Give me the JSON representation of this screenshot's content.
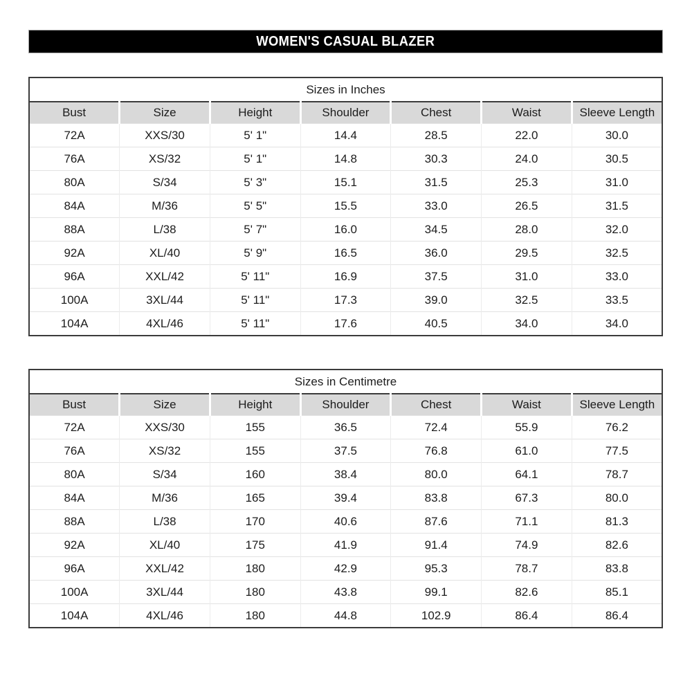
{
  "banner": {
    "title": "WOMEN'S CASUAL BLAZER",
    "bg_color": "#000000",
    "text_color": "#ffffff"
  },
  "colors": {
    "header_fill": "#d9d9d9",
    "table_border": "#3b3b3b",
    "row_separator": "#e2e2e2",
    "column_separator": "#ececec"
  },
  "tables": [
    {
      "title": "Sizes in Inches",
      "columns": [
        "Bust",
        "Size",
        "Height",
        "Shoulder",
        "Chest",
        "Waist",
        "Sleeve Length"
      ],
      "rows": [
        [
          "72A",
          "XXS/30",
          "5' 1\"",
          "14.4",
          "28.5",
          "22.0",
          "30.0"
        ],
        [
          "76A",
          "XS/32",
          "5' 1\"",
          "14.8",
          "30.3",
          "24.0",
          "30.5"
        ],
        [
          "80A",
          "S/34",
          "5' 3\"",
          "15.1",
          "31.5",
          "25.3",
          "31.0"
        ],
        [
          "84A",
          "M/36",
          "5' 5\"",
          "15.5",
          "33.0",
          "26.5",
          "31.5"
        ],
        [
          "88A",
          "L/38",
          "5' 7\"",
          "16.0",
          "34.5",
          "28.0",
          "32.0"
        ],
        [
          "92A",
          "XL/40",
          "5' 9\"",
          "16.5",
          "36.0",
          "29.5",
          "32.5"
        ],
        [
          "96A",
          "XXL/42",
          "5' 11\"",
          "16.9",
          "37.5",
          "31.0",
          "33.0"
        ],
        [
          "100A",
          "3XL/44",
          "5' 11\"",
          "17.3",
          "39.0",
          "32.5",
          "33.5"
        ],
        [
          "104A",
          "4XL/46",
          "5' 11\"",
          "17.6",
          "40.5",
          "34.0",
          "34.0"
        ]
      ]
    },
    {
      "title": "Sizes in Centimetre",
      "columns": [
        "Bust",
        "Size",
        "Height",
        "Shoulder",
        "Chest",
        "Waist",
        "Sleeve Length"
      ],
      "rows": [
        [
          "72A",
          "XXS/30",
          "155",
          "36.5",
          "72.4",
          "55.9",
          "76.2"
        ],
        [
          "76A",
          "XS/32",
          "155",
          "37.5",
          "76.8",
          "61.0",
          "77.5"
        ],
        [
          "80A",
          "S/34",
          "160",
          "38.4",
          "80.0",
          "64.1",
          "78.7"
        ],
        [
          "84A",
          "M/36",
          "165",
          "39.4",
          "83.8",
          "67.3",
          "80.0"
        ],
        [
          "88A",
          "L/38",
          "170",
          "40.6",
          "87.6",
          "71.1",
          "81.3"
        ],
        [
          "92A",
          "XL/40",
          "175",
          "41.9",
          "91.4",
          "74.9",
          "82.6"
        ],
        [
          "96A",
          "XXL/42",
          "180",
          "42.9",
          "95.3",
          "78.7",
          "83.8"
        ],
        [
          "100A",
          "3XL/44",
          "180",
          "43.8",
          "99.1",
          "82.6",
          "85.1"
        ],
        [
          "104A",
          "4XL/46",
          "180",
          "44.8",
          "102.9",
          "86.4",
          "86.4"
        ]
      ]
    }
  ]
}
